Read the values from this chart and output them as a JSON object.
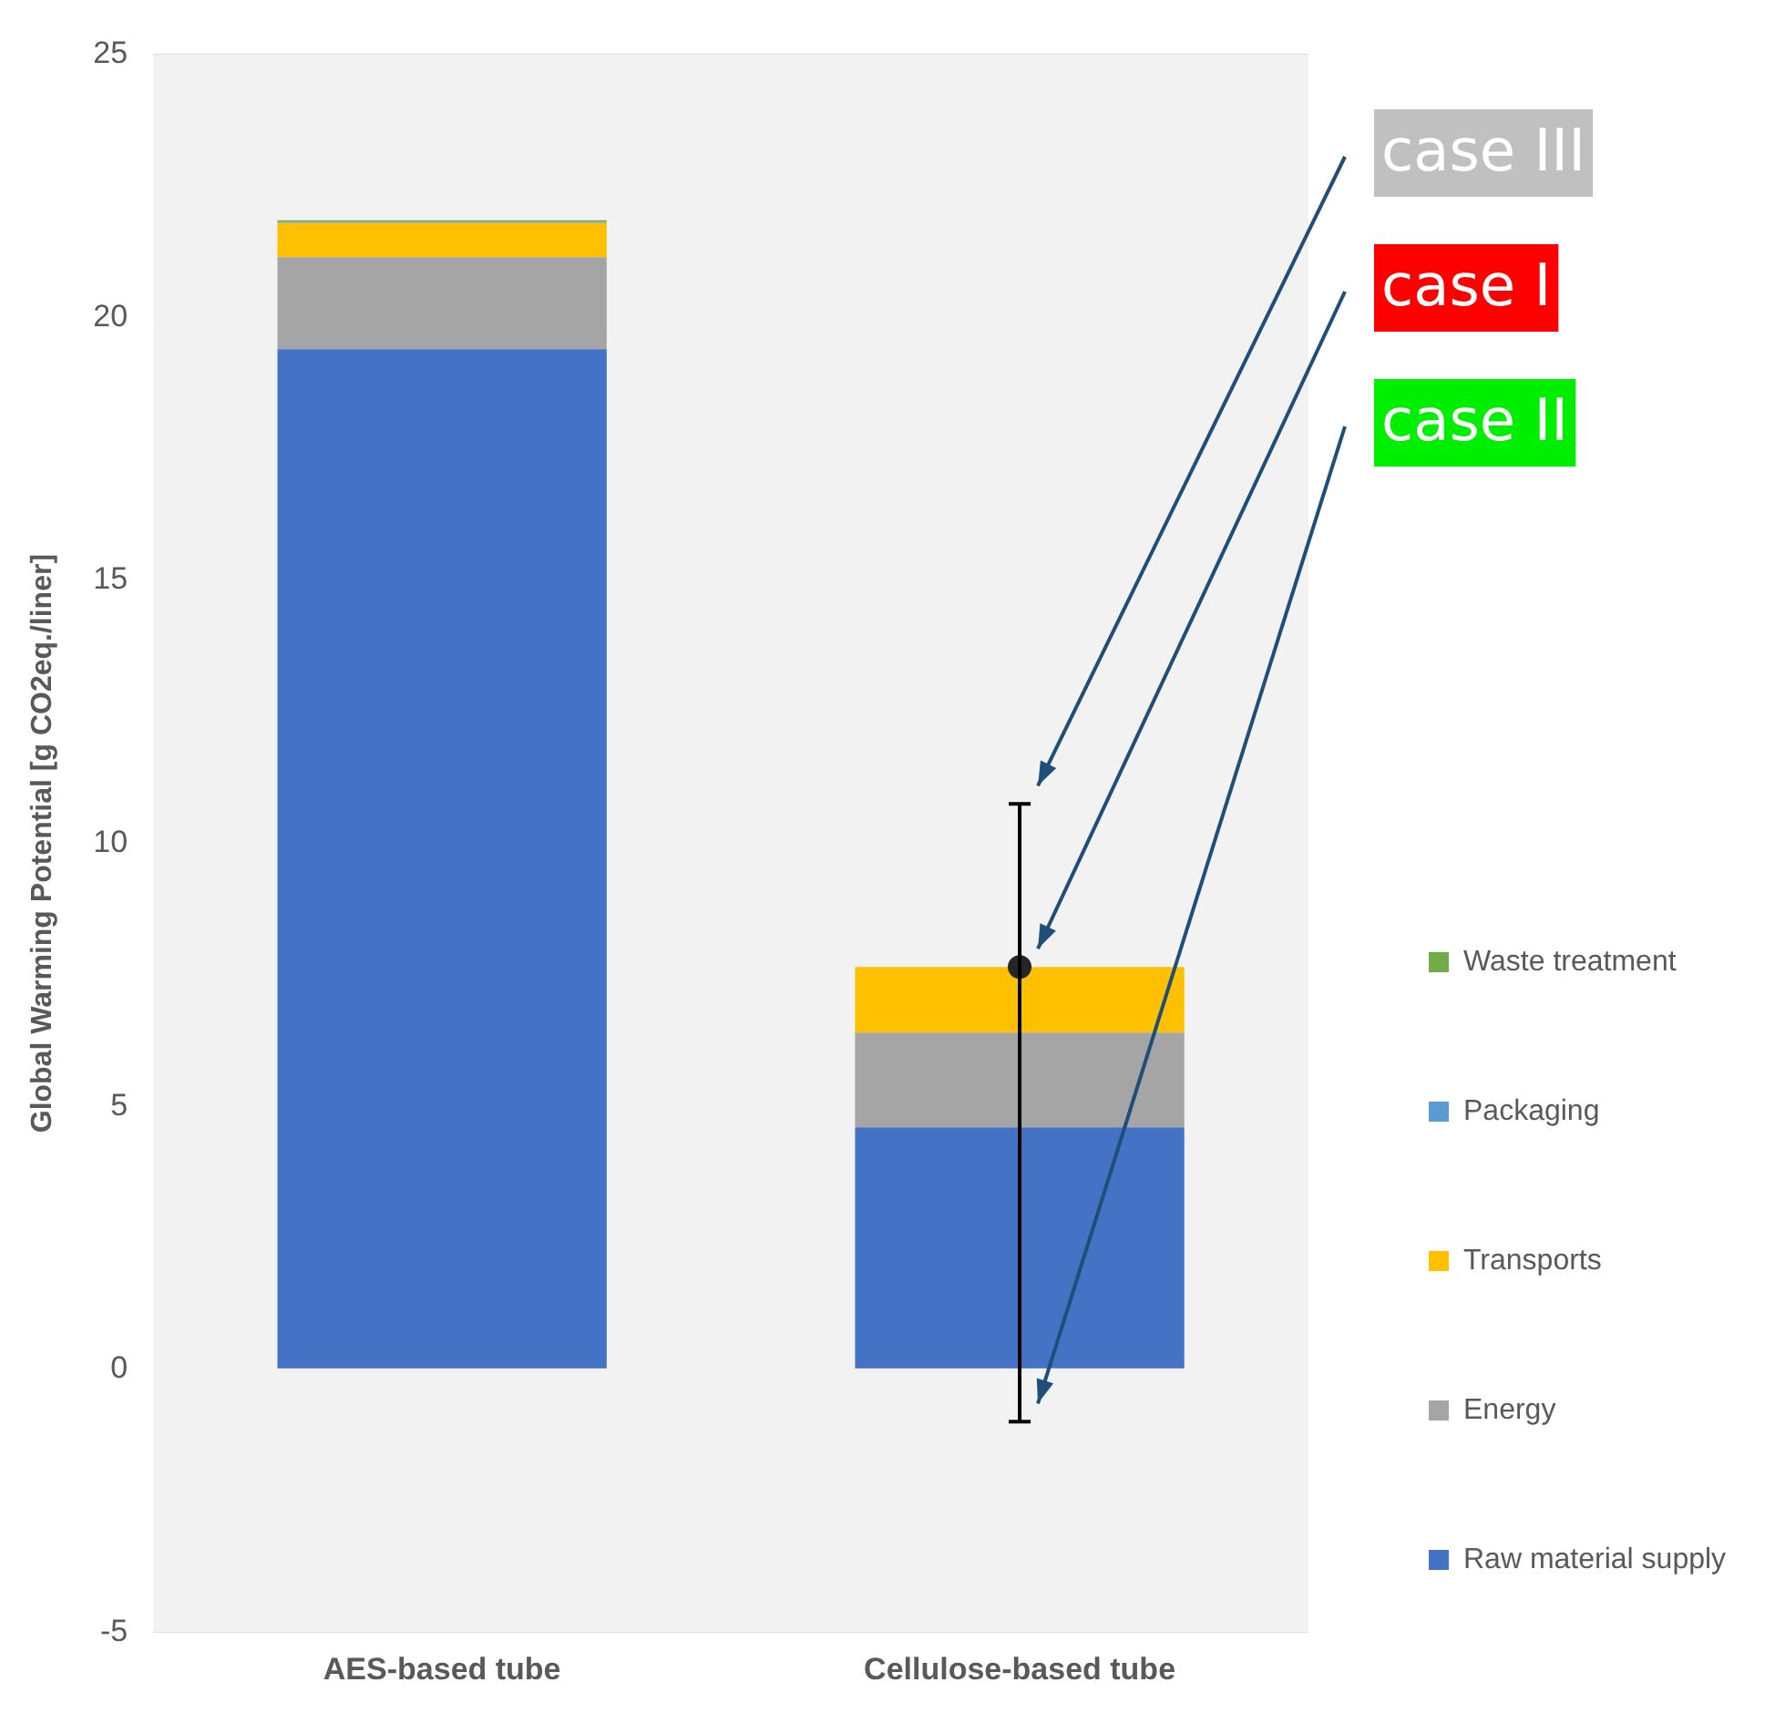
{
  "chart_data": {
    "type": "bar",
    "stacked": true,
    "ylabel": "Global Warming Potential [g CO2eq./liner]",
    "categories": [
      "AES-based tube",
      "Cellulose-based tube"
    ],
    "series": [
      {
        "name": "Raw material supply",
        "color": "#4472c4",
        "values": [
          19.4,
          4.6
        ]
      },
      {
        "name": "Energy",
        "color": "#a5a5a5",
        "values": [
          1.75,
          1.8
        ]
      },
      {
        "name": "Transports",
        "color": "#ffc000",
        "values": [
          0.65,
          1.25
        ]
      },
      {
        "name": "Packaging",
        "color": "#5b9bd5",
        "values": [
          0.02,
          0
        ]
      },
      {
        "name": "Waste treatment",
        "color": "#70ad47",
        "values": [
          0.03,
          0
        ]
      },
      {
        "type": "scatter",
        "color": "#262626",
        "x": [
          "Cellulose-based tube"
        ],
        "values": [
          7.65
        ],
        "errors": [
          [
            -1.0,
            10.75
          ]
        ]
      }
    ],
    "annotations": [
      "case III",
      "case I",
      "case II"
    ],
    "ylim": [
      -5,
      25
    ],
    "yticks": [
      -5,
      0,
      5,
      10,
      15,
      20,
      25
    ],
    "grid": "y",
    "legend": "right",
    "marker": "circle"
  }
}
